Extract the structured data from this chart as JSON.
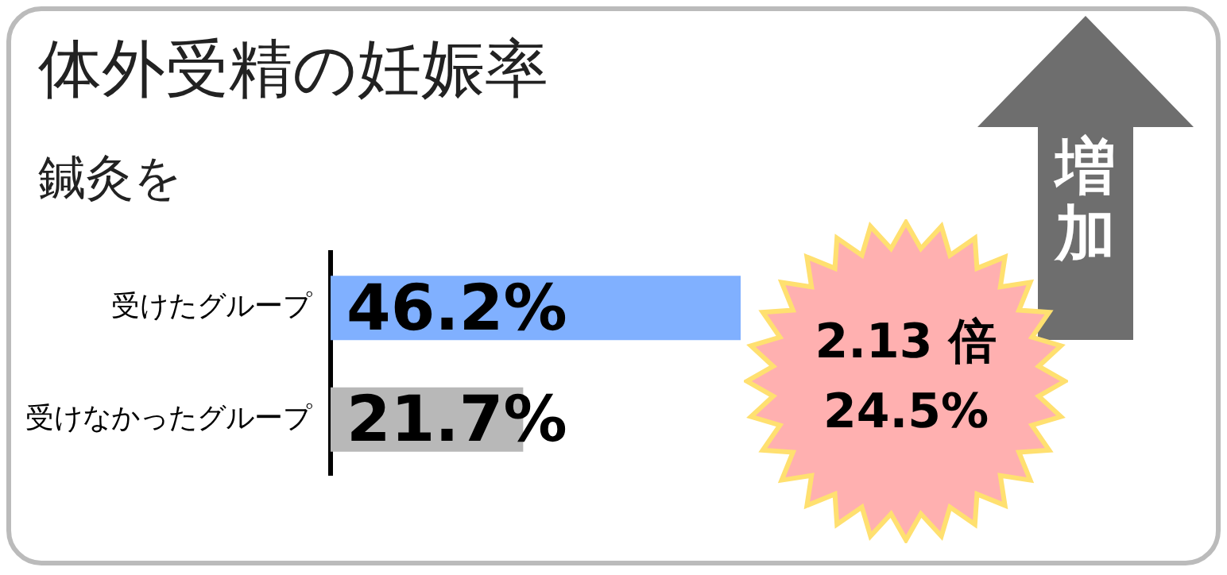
{
  "chart_data": {
    "type": "bar",
    "orientation": "horizontal",
    "title": "体外受精の妊娠率",
    "subtitle": "鍼灸を",
    "categories": [
      "受けたグループ",
      "受けなかったグループ"
    ],
    "values": [
      46.2,
      21.7
    ],
    "colors": [
      "#80b0ff",
      "#b8b8b8"
    ],
    "value_labels": [
      "46.2%",
      "21.7%"
    ],
    "annotations": [
      "2.13 倍",
      "24.5%",
      "増加"
    ],
    "tick_labels": "y",
    "legend": false
  }
}
